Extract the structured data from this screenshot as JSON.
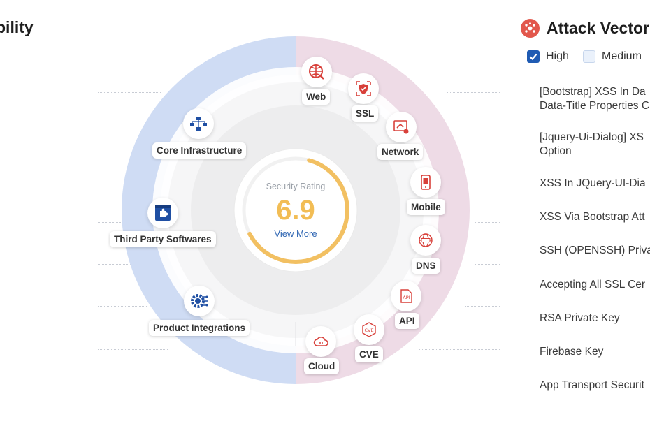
{
  "header": {
    "left_title": "bility"
  },
  "wheel": {
    "rating_label": "Security Rating",
    "rating_value": "6.9",
    "rating_fraction": 0.69,
    "view_more": "View More",
    "colors": {
      "left_ring": "#c9d8f3",
      "right_ring": "#ecd6e3",
      "gauge": "#f2c062",
      "blue_icon": "#1f4fa3",
      "red_icon": "#d8403a"
    },
    "left_nodes": [
      {
        "label": "Core Infrastructure",
        "icon": "network-diagram-icon"
      },
      {
        "label": "Third Party Softwares",
        "icon": "puzzle-icon"
      },
      {
        "label": "Product Integrations",
        "icon": "integration-gear-icon"
      }
    ],
    "right_nodes": [
      {
        "label": "Web",
        "icon": "globe-icon"
      },
      {
        "label": "SSL",
        "icon": "shield-icon"
      },
      {
        "label": "Network",
        "icon": "network-icon"
      },
      {
        "label": "Mobile",
        "icon": "mobile-icon"
      },
      {
        "label": "DNS",
        "icon": "dns-globe-icon"
      },
      {
        "label": "API",
        "icon": "api-icon"
      },
      {
        "label": "CVE",
        "icon": "cve-icon"
      },
      {
        "label": "Cloud",
        "icon": "cloud-icon"
      }
    ]
  },
  "attack_panel": {
    "title": "Attack Vectors",
    "filters": [
      {
        "label": "High",
        "checked": true
      },
      {
        "label": "Medium",
        "checked": false
      }
    ],
    "items": [
      "[Bootstrap] XSS In Da\nData-Title Properties C",
      "[Jquery-Ui-Dialog] XS\nOption",
      "XSS In JQuery-UI-Dia",
      "XSS Via Bootstrap Att",
      "SSH (OPENSSH) Priva",
      "Accepting All SSL Cer",
      "RSA Private Key",
      "Firebase Key",
      "App Transport Securit"
    ]
  }
}
